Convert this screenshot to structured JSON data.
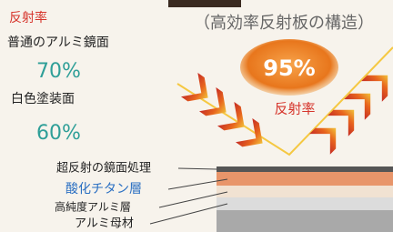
{
  "left": {
    "heading": "反射率",
    "items": [
      {
        "label": "普通のアルミ鏡面",
        "value": "70%"
      },
      {
        "label": "白色塗装面",
        "value": "60%"
      }
    ]
  },
  "diagram": {
    "title": "（高効率反射板の構造）",
    "value": "95%",
    "value_label": "反射率"
  },
  "layers": {
    "heading": "超反射の鏡面処理",
    "items": [
      "酸化チタン層",
      "高純度アルミ層",
      "アルミ母材"
    ]
  }
}
